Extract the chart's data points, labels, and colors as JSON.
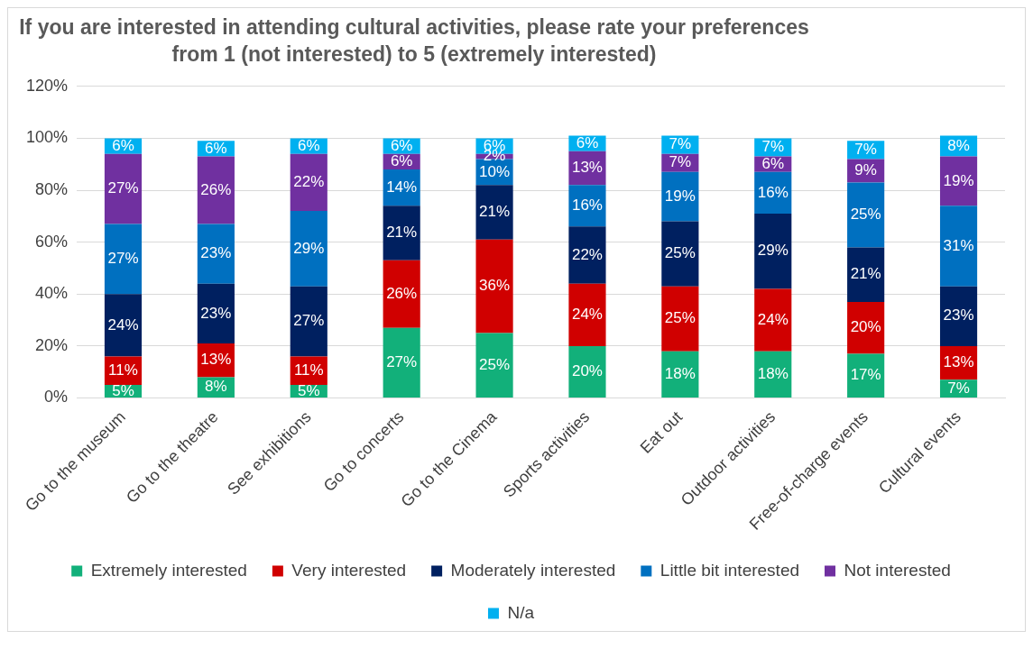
{
  "chart_data": {
    "type": "bar",
    "stacked": true,
    "title": "If you are interested in attending cultural activities, please rate your preferences from 1 (not interested) to 5 (extremely interested)",
    "categories": [
      "Go to the museum",
      "Go to the theatre",
      "See exhibitions",
      "Go to concerts",
      "Go to the Cinema",
      "Sports activities",
      "Eat out",
      "Outdoor activities",
      "Free-of-charge events",
      "Cultural events"
    ],
    "series": [
      {
        "name": "Extremely interested",
        "color": "#12b07a",
        "values": [
          5,
          8,
          5,
          27,
          25,
          20,
          18,
          18,
          17,
          7
        ],
        "value_labels": [
          "5%",
          "8%",
          "5%",
          "27%",
          "25%",
          "20%",
          "18%",
          "18%",
          "17%",
          "7%"
        ]
      },
      {
        "name": "Very interested",
        "color": "#d00000",
        "values": [
          11,
          13,
          11,
          26,
          36,
          24,
          25,
          24,
          20,
          13
        ],
        "value_labels": [
          "11%",
          "13%",
          "11%",
          "26%",
          "36%",
          "24%",
          "25%",
          "24%",
          "20%",
          "13%"
        ]
      },
      {
        "name": "Moderately interested",
        "color": "#002060",
        "values": [
          24,
          23,
          27,
          21,
          21,
          22,
          25,
          29,
          21,
          23
        ],
        "value_labels": [
          "24%",
          "23%",
          "27%",
          "21%",
          "21%",
          "22%",
          "25%",
          "29%",
          "21%",
          "23%"
        ]
      },
      {
        "name": "Little bit interested",
        "color": "#0070c0",
        "values": [
          27,
          23,
          29,
          14,
          10,
          16,
          19,
          16,
          25,
          31
        ],
        "value_labels": [
          "27%",
          "23%",
          "29%",
          "14%",
          "10%",
          "16%",
          "19%",
          "16%",
          "25%",
          "31%"
        ]
      },
      {
        "name": "Not interested",
        "color": "#7030a0",
        "values": [
          27,
          26,
          22,
          6,
          2,
          13,
          7,
          6,
          9,
          19
        ],
        "value_labels": [
          "27%",
          "26%",
          "22%",
          "6%",
          "2%",
          "13%",
          "7%",
          "6%",
          "9%",
          "19%"
        ]
      },
      {
        "name": "N/a",
        "color": "#00b0f0",
        "values": [
          6,
          6,
          6,
          6,
          6,
          6,
          7,
          7,
          7,
          8
        ],
        "value_labels": [
          "6%",
          "6%",
          "6%",
          "6%",
          "6%",
          "6%",
          "7%",
          "7%",
          "7%",
          "8%"
        ]
      }
    ],
    "ylim": [
      0,
      120
    ],
    "yticks": [
      {
        "value": 0,
        "label": "0%"
      },
      {
        "value": 20,
        "label": "20%"
      },
      {
        "value": 40,
        "label": "40%"
      },
      {
        "value": 60,
        "label": "60%"
      },
      {
        "value": 80,
        "label": "80%"
      },
      {
        "value": 100,
        "label": "100%"
      },
      {
        "value": 120,
        "label": "120%"
      }
    ],
    "grid": "y",
    "legend": "bottom"
  }
}
